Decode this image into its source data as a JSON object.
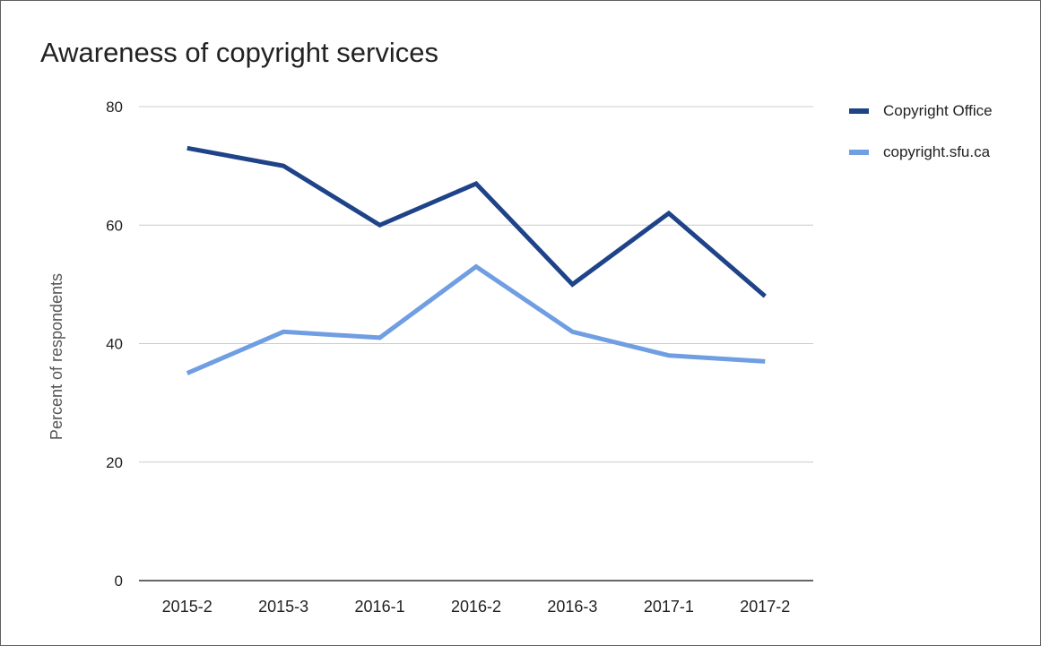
{
  "title": "Awareness of copyright services",
  "colors": {
    "copyright_office": "#1f4388",
    "copyright_sfu": "#6f9ee3",
    "grid": "#cccccc",
    "axis": "#333333"
  },
  "chart_data": {
    "type": "line",
    "title": "Awareness of copyright services",
    "xlabel": "",
    "ylabel": "Percent of respondents",
    "categories": [
      "2015-2",
      "2015-3",
      "2016-1",
      "2016-2",
      "2016-3",
      "2017-1",
      "2017-2"
    ],
    "series": [
      {
        "name": "Copyright Office",
        "values": [
          73,
          70,
          60,
          67,
          50,
          62,
          48
        ],
        "color": "#1f4388"
      },
      {
        "name": "copyright.sfu.ca",
        "values": [
          35,
          42,
          41,
          53,
          42,
          38,
          37
        ],
        "color": "#6f9ee3"
      }
    ],
    "ylim": [
      0,
      80
    ],
    "yticks": [
      0,
      20,
      40,
      60,
      80
    ],
    "grid": true,
    "legend_position": "right"
  }
}
